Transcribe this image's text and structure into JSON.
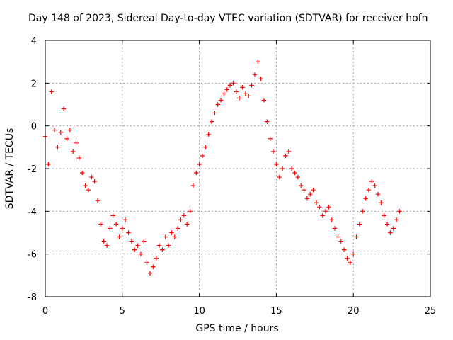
{
  "chart_data": {
    "type": "scatter",
    "title": "Day 148 of 2023, Sidereal Day-to-day VTEC variation (SDTVAR) for receiver hofn",
    "xlabel": "GPS time / hours",
    "ylabel": "SDTVAR / TECUs",
    "xlim": [
      0,
      25
    ],
    "ylim": [
      -8,
      4
    ],
    "xticks": [
      "0",
      "5",
      "10",
      "15",
      "20",
      "25"
    ],
    "yticks": [
      "-8",
      "-6",
      "-4",
      "-2",
      "0",
      "2",
      "4"
    ],
    "grid": true,
    "marker": "+",
    "series": [
      {
        "name": "SDTVAR",
        "color": "#ff0000",
        "x": [
          0.0,
          0.2,
          0.4,
          0.6,
          0.8,
          1.0,
          1.2,
          1.4,
          1.6,
          1.8,
          2.0,
          2.2,
          2.4,
          2.6,
          2.8,
          3.0,
          3.2,
          3.4,
          3.6,
          3.8,
          4.0,
          4.2,
          4.4,
          4.6,
          4.8,
          5.0,
          5.2,
          5.4,
          5.6,
          5.8,
          6.0,
          6.2,
          6.4,
          6.6,
          6.8,
          7.0,
          7.2,
          7.4,
          7.6,
          7.8,
          8.0,
          8.2,
          8.4,
          8.6,
          8.8,
          9.0,
          9.2,
          9.4,
          9.6,
          9.8,
          10.0,
          10.2,
          10.4,
          10.6,
          10.8,
          11.0,
          11.2,
          11.4,
          11.6,
          11.8,
          12.0,
          12.2,
          12.4,
          12.6,
          12.8,
          13.0,
          13.2,
          13.4,
          13.6,
          13.8,
          14.0,
          14.2,
          14.4,
          14.6,
          14.8,
          15.0,
          15.2,
          15.4,
          15.6,
          15.8,
          16.0,
          16.2,
          16.4,
          16.6,
          16.8,
          17.0,
          17.2,
          17.4,
          17.6,
          17.8,
          18.0,
          18.2,
          18.4,
          18.6,
          18.8,
          19.0,
          19.2,
          19.4,
          19.6,
          19.8,
          20.0,
          20.2,
          20.4,
          20.6,
          20.8,
          21.0,
          21.2,
          21.4,
          21.6,
          21.8,
          22.0,
          22.2,
          22.4,
          22.6,
          22.8,
          23.0
        ],
        "y": [
          -0.5,
          -1.8,
          1.6,
          -0.2,
          -1.0,
          -0.3,
          0.8,
          -0.6,
          -0.2,
          -1.2,
          -0.8,
          -1.5,
          -2.2,
          -2.8,
          -3.0,
          -2.4,
          -2.6,
          -3.5,
          -4.6,
          -5.4,
          -5.6,
          -4.8,
          -4.2,
          -4.6,
          -5.2,
          -4.8,
          -4.4,
          -5.0,
          -5.4,
          -5.8,
          -5.6,
          -6.0,
          -5.4,
          -6.4,
          -6.9,
          -6.6,
          -6.2,
          -5.6,
          -5.8,
          -5.2,
          -5.6,
          -5.0,
          -5.2,
          -4.8,
          -4.4,
          -4.2,
          -4.6,
          -4.0,
          -2.8,
          -2.2,
          -1.8,
          -1.4,
          -1.0,
          -0.4,
          0.2,
          0.6,
          1.0,
          1.2,
          1.5,
          1.7,
          1.9,
          2.0,
          1.6,
          1.3,
          1.8,
          1.5,
          1.4,
          1.9,
          2.4,
          3.0,
          2.2,
          1.2,
          0.2,
          -0.6,
          -1.2,
          -1.8,
          -2.4,
          -2.0,
          -1.4,
          -1.2,
          -2.0,
          -2.2,
          -2.4,
          -2.8,
          -3.0,
          -3.4,
          -3.2,
          -3.0,
          -3.6,
          -3.8,
          -4.2,
          -4.0,
          -3.8,
          -4.4,
          -4.8,
          -5.2,
          -5.4,
          -5.8,
          -6.2,
          -6.4,
          -6.0,
          -5.2,
          -4.6,
          -4.0,
          -3.4,
          -3.0,
          -2.6,
          -2.8,
          -3.2,
          -3.6,
          -4.2,
          -4.6,
          -5.0,
          -4.8,
          -4.4,
          -4.0
        ]
      }
    ]
  }
}
